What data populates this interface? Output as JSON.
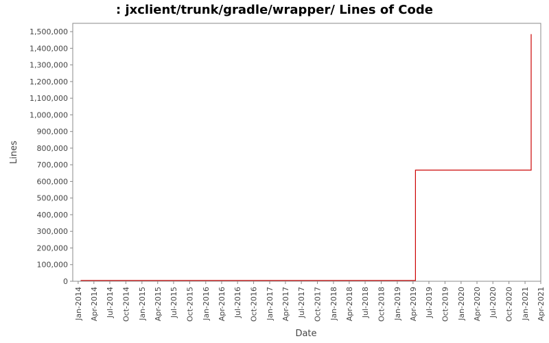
{
  "chart_data": {
    "type": "line",
    "title": ": jxclient/trunk/gradle/wrapper/ Lines of Code",
    "xlabel": "Date",
    "ylabel": "Lines",
    "ylim": [
      0,
      1550000
    ],
    "yticks": [
      0,
      100000,
      200000,
      300000,
      400000,
      500000,
      600000,
      700000,
      800000,
      900000,
      1000000,
      1100000,
      1200000,
      1300000,
      1400000,
      1500000
    ],
    "ytick_labels": [
      "0",
      "100,000",
      "200,000",
      "300,000",
      "400,000",
      "500,000",
      "600,000",
      "700,000",
      "800,000",
      "900,000",
      "1,000,000",
      "1,100,000",
      "1,200,000",
      "1,300,000",
      "1,400,000",
      "1,500,000"
    ],
    "xlim": [
      "2013-12-01",
      "2021-04-01"
    ],
    "xticks": [
      "2014-01-01",
      "2014-04-01",
      "2014-07-01",
      "2014-10-01",
      "2015-01-01",
      "2015-04-01",
      "2015-07-01",
      "2015-10-01",
      "2016-01-01",
      "2016-04-01",
      "2016-07-01",
      "2016-10-01",
      "2017-01-01",
      "2017-04-01",
      "2017-07-01",
      "2017-10-01",
      "2018-01-01",
      "2018-04-01",
      "2018-07-01",
      "2018-10-01",
      "2019-01-01",
      "2019-04-01",
      "2019-07-01",
      "2019-10-01",
      "2020-01-01",
      "2020-04-01",
      "2020-07-01",
      "2020-10-01",
      "2021-01-01",
      "2021-04-01"
    ],
    "xtick_labels": [
      "Jan-2014",
      "Apr-2014",
      "Jul-2014",
      "Oct-2014",
      "Jan-2015",
      "Apr-2015",
      "Jul-2015",
      "Oct-2015",
      "Jan-2016",
      "Apr-2016",
      "Jul-2016",
      "Oct-2016",
      "Jan-2017",
      "Apr-2017",
      "Jul-2017",
      "Oct-2017",
      "Jan-2018",
      "Apr-2018",
      "Jul-2018",
      "Oct-2018",
      "Jan-2019",
      "Apr-2019",
      "Jul-2019",
      "Oct-2019",
      "Jan-2020",
      "Apr-2020",
      "Jul-2020",
      "Oct-2020",
      "Jan-2021",
      "Apr-2021"
    ],
    "grid": false,
    "series": [
      {
        "color": "#cc0000",
        "step": true,
        "points": [
          {
            "x": "2014-01-15",
            "y": 5000
          },
          {
            "x": "2019-04-15",
            "y": 5000
          },
          {
            "x": "2019-04-15",
            "y": 668000
          },
          {
            "x": "2021-02-05",
            "y": 668000
          },
          {
            "x": "2021-02-05",
            "y": 1485000
          }
        ]
      }
    ]
  }
}
